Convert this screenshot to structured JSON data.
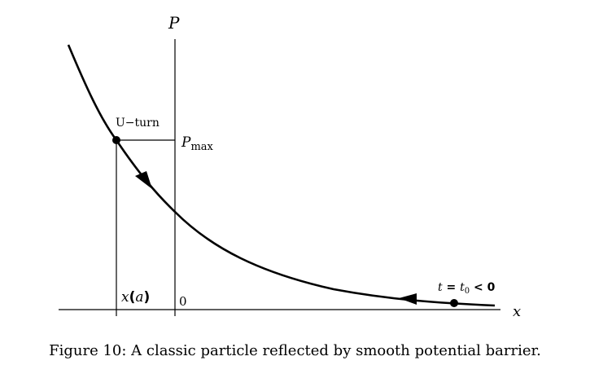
{
  "figure": {
    "axis_x_label": "x",
    "axis_p_label": "P",
    "pmax_label_main": "P",
    "pmax_label_sub": "max",
    "uturn_label": "U−turn",
    "xa_label_x": "x",
    "xa_label_open": "(",
    "xa_label_a": "a",
    "xa_label_close": ")",
    "origin_label": "0",
    "start_label_t": "t",
    "start_label_eq": " = ",
    "start_label_t0": "t",
    "start_label_t0_sub": "0",
    "start_label_lt": " < 0",
    "caption": "Figure 10: A classic particle reflected by smooth potential barrier."
  },
  "colors": {
    "ink": "#000000",
    "background": "#ffffff"
  }
}
